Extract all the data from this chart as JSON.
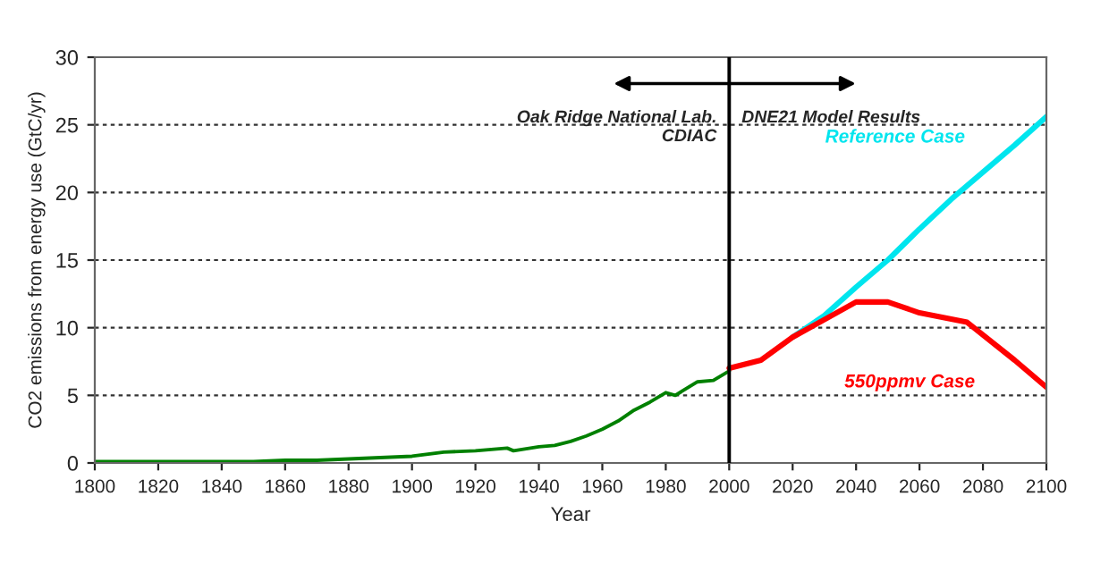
{
  "chart_data": {
    "type": "line",
    "xlabel": "Year",
    "ylabel": "CO2 emissions from energy use (GtC/yr)",
    "xlim": [
      1800,
      2100
    ],
    "xticks": [
      1800,
      1820,
      1840,
      1860,
      1880,
      1900,
      1920,
      1940,
      1960,
      1980,
      2000,
      2020,
      2040,
      2060,
      2080,
      2100
    ],
    "ylim": [
      0,
      30
    ],
    "yticks": [
      0,
      5,
      10,
      15,
      20,
      25,
      30
    ],
    "grid": "y",
    "legend": false,
    "line_style": "solid",
    "marker": "none",
    "series": [
      {
        "color": "#008000",
        "x": [
          1800,
          1820,
          1840,
          1850,
          1860,
          1870,
          1880,
          1890,
          1900,
          1910,
          1920,
          1925,
          1930,
          1932,
          1940,
          1945,
          1950,
          1955,
          1960,
          1965,
          1970,
          1975,
          1980,
          1983,
          1990,
          1995,
          2000
        ],
        "values": [
          0.1,
          0.1,
          0.1,
          0.1,
          0.2,
          0.2,
          0.3,
          0.4,
          0.5,
          0.8,
          0.9,
          1.0,
          1.1,
          0.9,
          1.2,
          1.3,
          1.6,
          2.0,
          2.5,
          3.1,
          3.9,
          4.5,
          5.2,
          5.0,
          6.0,
          6.1,
          6.8
        ]
      },
      {
        "name": "Reference Case",
        "color": "#00e5ee",
        "x": [
          2020,
          2030,
          2040,
          2050,
          2060,
          2070,
          2080,
          2090,
          2100
        ],
        "values": [
          9.3,
          10.9,
          13.0,
          15.0,
          17.3,
          19.5,
          21.5,
          23.5,
          25.6
        ]
      },
      {
        "name": "550ppmv Case",
        "color": "#ff0000",
        "x": [
          2000,
          2010,
          2020,
          2030,
          2040,
          2050,
          2060,
          2075,
          2090,
          2100
        ],
        "values": [
          7.0,
          7.6,
          9.3,
          10.6,
          11.9,
          11.9,
          11.1,
          10.4,
          7.6,
          5.6
        ]
      }
    ],
    "ref_lines": [
      {
        "axis": "x",
        "value": 2000,
        "color": "#000000"
      }
    ],
    "annotations": [
      "Oak Ridge National Lab.\nCDIAC",
      "DNE21 Model Results"
    ]
  }
}
